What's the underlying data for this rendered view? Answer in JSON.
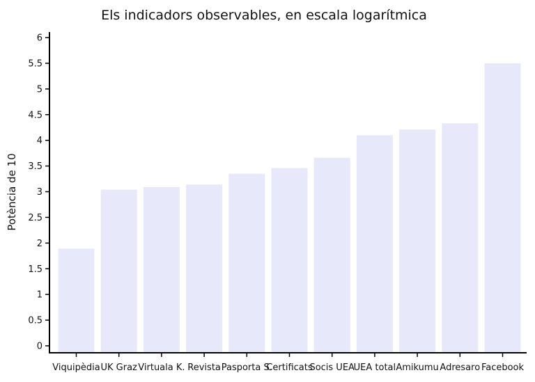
{
  "chart_data": {
    "type": "bar",
    "title": "Els indicadors observables, en escala logarítmica",
    "xlabel": "",
    "ylabel": "Potència de 10",
    "ylim": [
      0,
      6
    ],
    "yticks": [
      "0",
      "0.5",
      "1",
      "1.5",
      "2",
      "2.5",
      "3",
      "3.5",
      "4",
      "4.5",
      "5",
      "5.5",
      "6"
    ],
    "categories": [
      "Viquipèdia",
      "UK Graz",
      "Virtuala K.",
      "Revista",
      "Pasporta S.",
      "Certificats",
      "Socis UEA",
      "UEA total",
      "Amikumu",
      "Adresaro",
      "Facebook"
    ],
    "values": [
      1.89,
      3.04,
      3.09,
      3.14,
      3.35,
      3.46,
      3.66,
      4.1,
      4.21,
      4.33,
      5.5
    ],
    "bar_color": "#e8e8fb",
    "grid": false,
    "legend": "none"
  }
}
